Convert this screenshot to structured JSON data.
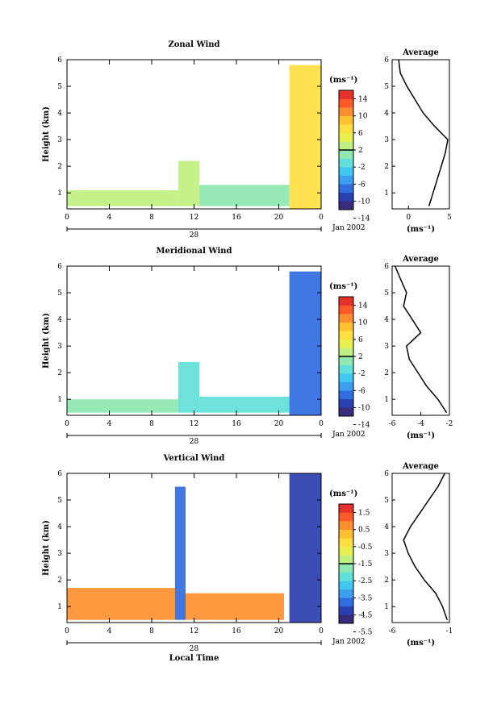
{
  "x_axis_label": "Local Time",
  "date_label": "Jan 2002",
  "day_label": "28",
  "y_label": "Height (km)",
  "unit_label": "(ms⁻¹)",
  "average_title": "Average",
  "x_ticks": [
    "0",
    "4",
    "8",
    "12",
    "16",
    "20",
    "0"
  ],
  "y_ticks": [
    "1",
    "2",
    "3",
    "4",
    "5",
    "6"
  ],
  "colors": {
    "scale": [
      "#3a2a7a",
      "#2b3fb0",
      "#2f6de0",
      "#3d9ff0",
      "#40c8f0",
      "#5fe0d8",
      "#8ee8b0",
      "#c0f080",
      "#e8f050",
      "#ffe040",
      "#ffc030",
      "#ff9030",
      "#ff5a28",
      "#e8302a"
    ]
  },
  "chart_data": [
    {
      "type": "heatmap",
      "title": "Zonal Wind",
      "ylabel": "Height (km)",
      "xlabel": "",
      "xlim": [
        0,
        24
      ],
      "ylim": [
        0.4,
        6
      ],
      "colorbar": {
        "ticks": [
          "14",
          "10",
          "6",
          "2",
          "-2",
          "-6",
          "-10",
          "-14"
        ],
        "range": [
          -16,
          16
        ]
      },
      "fields": [
        {
          "x0": 0,
          "x1": 10.5,
          "y0": 0.5,
          "y1": 1.1,
          "value": 1
        },
        {
          "x0": 10.5,
          "x1": 12.5,
          "y0": 0.5,
          "y1": 2.2,
          "value": 0
        },
        {
          "x0": 12.5,
          "x1": 21,
          "y0": 0.5,
          "y1": 1.3,
          "value": -1
        },
        {
          "x0": 21,
          "x1": 24,
          "y0": 0.4,
          "y1": 5.8,
          "value": 6
        }
      ],
      "average_profile": {
        "title": "Average",
        "xlabel": "(ms⁻¹)",
        "xlim": [
          -2,
          5
        ],
        "x_ticks": [
          "0",
          "5"
        ],
        "heights": [
          0.5,
          1.0,
          1.5,
          2.0,
          2.5,
          3.0,
          3.5,
          4.0,
          4.5,
          5.0,
          5.5,
          6.0
        ],
        "values": [
          2.5,
          3.0,
          3.5,
          4.0,
          4.5,
          4.8,
          3.2,
          1.8,
          0.8,
          -0.2,
          -1.0,
          -1.2
        ]
      }
    },
    {
      "type": "heatmap",
      "title": "Meridional Wind",
      "ylabel": "Height (km)",
      "xlabel": "",
      "xlim": [
        0,
        24
      ],
      "ylim": [
        0.4,
        6
      ],
      "colorbar": {
        "ticks": [
          "14",
          "10",
          "6",
          "2",
          "-2",
          "-6",
          "-10",
          "-14"
        ],
        "range": [
          -16,
          16
        ]
      },
      "fields": [
        {
          "x0": 0,
          "x1": 10.5,
          "y0": 0.5,
          "y1": 1.0,
          "value": -2
        },
        {
          "x0": 10.5,
          "x1": 12.5,
          "y0": 0.5,
          "y1": 2.4,
          "value": -3
        },
        {
          "x0": 12.5,
          "x1": 21,
          "y0": 0.5,
          "y1": 1.1,
          "value": -4
        },
        {
          "x0": 21,
          "x1": 24,
          "y0": 0.4,
          "y1": 5.8,
          "value": -10
        }
      ],
      "average_profile": {
        "title": "Average",
        "xlabel": "(ms⁻¹)",
        "xlim": [
          -6,
          -2
        ],
        "x_ticks": [
          "-6",
          "-4",
          "-2"
        ],
        "heights": [
          0.5,
          1.0,
          1.5,
          2.0,
          2.5,
          3.0,
          3.5,
          4.0,
          4.5,
          5.0,
          5.5,
          6.0
        ],
        "values": [
          -2.2,
          -2.8,
          -3.6,
          -4.2,
          -4.8,
          -5.0,
          -4.0,
          -4.6,
          -5.2,
          -5.0,
          -5.4,
          -5.8
        ]
      }
    },
    {
      "type": "heatmap",
      "title": "Vertical Wind",
      "ylabel": "Height (km)",
      "xlabel": "Local Time",
      "xlim": [
        0,
        24
      ],
      "ylim": [
        0.4,
        6
      ],
      "colorbar": {
        "ticks": [
          "1.5",
          "0.5",
          "-0.5",
          "-1.5",
          "-2.5",
          "-3.5",
          "-4.5",
          "-5.5"
        ],
        "range": [
          -6,
          2
        ]
      },
      "fields": [
        {
          "x0": 0,
          "x1": 10.2,
          "y0": 0.5,
          "y1": 1.7,
          "value": 0.3
        },
        {
          "x0": 10.2,
          "x1": 11.2,
          "y0": 0.5,
          "y1": 5.5,
          "value": -4.5
        },
        {
          "x0": 11.2,
          "x1": 20.5,
          "y0": 0.5,
          "y1": 1.5,
          "value": 0.3
        },
        {
          "x0": 21,
          "x1": 24,
          "y0": 0.4,
          "y1": 6.0,
          "value": -5.0
        }
      ],
      "average_profile": {
        "title": "Average",
        "xlabel": "(ms⁻¹)",
        "xlim": [
          -6,
          -1
        ],
        "x_ticks": [
          "-6",
          "-1"
        ],
        "heights": [
          0.5,
          1.0,
          1.5,
          2.0,
          2.5,
          3.0,
          3.5,
          4.0,
          4.5,
          5.0,
          5.5,
          6.0
        ],
        "values": [
          -1.2,
          -1.6,
          -2.2,
          -3.2,
          -4.0,
          -4.6,
          -5.0,
          -4.4,
          -3.6,
          -2.8,
          -2.0,
          -1.4
        ]
      }
    }
  ]
}
